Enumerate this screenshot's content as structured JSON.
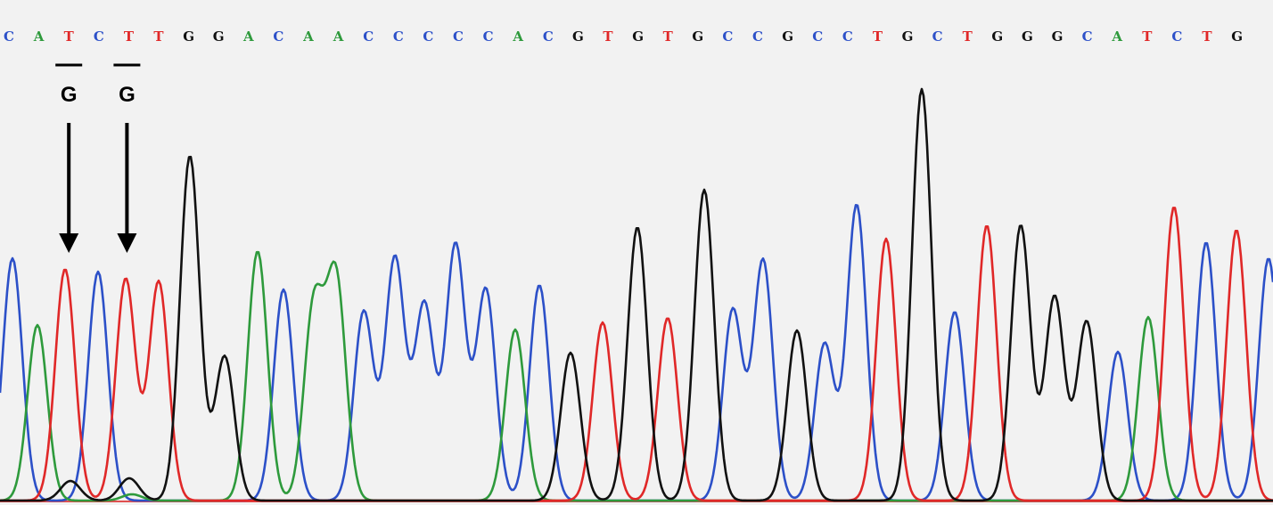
{
  "chart_data": {
    "type": "line",
    "title": "",
    "xlabel": "",
    "ylabel": "",
    "grid": false,
    "legend": "none",
    "colors": {
      "A": "#2e9a3c",
      "C": "#2c50c8",
      "G": "#111111",
      "T": "#e02828"
    },
    "basecalls": [
      "C",
      "A",
      "T",
      "C",
      "T",
      "T",
      "G",
      "G",
      "A",
      "C",
      "A",
      "A",
      "C",
      "C",
      "C",
      "C",
      "C",
      "A",
      "C",
      "G",
      "T",
      "G",
      "T",
      "G",
      "C",
      "C",
      "G",
      "C",
      "C",
      "T",
      "G",
      "C",
      "T",
      "G",
      "G",
      "G",
      "C",
      "A",
      "T",
      "C",
      "T",
      "G"
    ],
    "annotations": [
      {
        "base_index": 2,
        "label": "G",
        "original": "T"
      },
      {
        "base_index": 4,
        "label": "G",
        "original": "T"
      }
    ],
    "series": [
      {
        "base": "C",
        "peaks": [
          [
            14,
            290
          ],
          [
            110,
            305
          ],
          [
            318,
            325
          ],
          [
            408,
            350
          ],
          [
            443,
            290
          ],
          [
            476,
            342
          ],
          [
            511,
            275
          ],
          [
            545,
            325
          ],
          [
            605,
            320
          ],
          [
            822,
            348
          ],
          [
            856,
            292
          ],
          [
            925,
            386
          ],
          [
            961,
            230
          ],
          [
            1071,
            350
          ],
          [
            1254,
            395
          ],
          [
            1353,
            272
          ],
          [
            1423,
            290
          ]
        ]
      },
      {
        "base": "A",
        "peaks": [
          [
            42,
            365
          ],
          [
            148,
            555
          ],
          [
            289,
            282
          ],
          [
            352,
            345
          ],
          [
            377,
            314
          ],
          [
            578,
            370
          ],
          [
            1288,
            356
          ]
        ]
      },
      {
        "base": "T",
        "peaks": [
          [
            73,
            302
          ],
          [
            141,
            313
          ],
          [
            178,
            316
          ],
          [
            676,
            362
          ],
          [
            749,
            357
          ],
          [
            994,
            268
          ],
          [
            1107,
            253
          ],
          [
            1317,
            232
          ],
          [
            1387,
            258
          ]
        ]
      },
      {
        "base": "G",
        "peaks": [
          [
            79,
            540
          ],
          [
            145,
            537
          ],
          [
            213,
            175
          ],
          [
            252,
            400
          ],
          [
            640,
            396
          ],
          [
            715,
            255
          ],
          [
            790,
            213
          ],
          [
            894,
            371
          ],
          [
            1034,
            100
          ],
          [
            1145,
            253
          ],
          [
            1183,
            333
          ],
          [
            1219,
            361
          ]
        ]
      }
    ]
  }
}
